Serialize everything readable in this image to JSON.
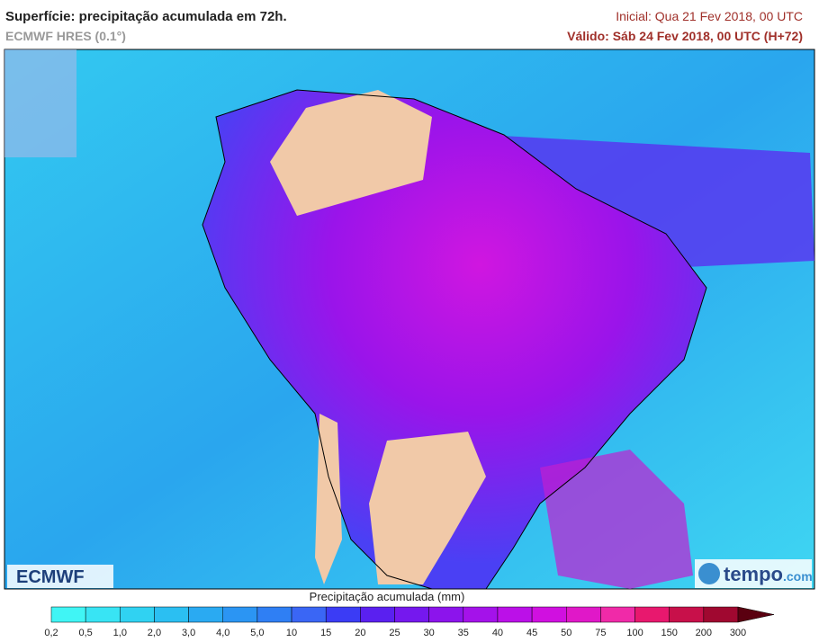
{
  "header": {
    "title": "Superfície: precipitação acumulada em 72h.",
    "subtitle": "ECMWF HRES (0.1°)",
    "init": "Inicial: Qua 21 Fev 2018, 00 UTC",
    "valid": "Válido: Sáb 24 Fev 2018, 00 UTC (H+72)"
  },
  "logos": {
    "left": "ECMWF",
    "right_brand": "tempo",
    "right_suffix": ".com"
  },
  "legend": {
    "label": "Precipitação acumulada (mm)",
    "ticks": [
      "0,2",
      "0,5",
      "1,0",
      "2,0",
      "3,0",
      "4,0",
      "5,0",
      "10",
      "15",
      "20",
      "25",
      "30",
      "35",
      "40",
      "45",
      "50",
      "75",
      "100",
      "150",
      "200",
      "300"
    ],
    "colors": [
      "#40f5f5",
      "#38e4f4",
      "#30d2f2",
      "#2bbff2",
      "#2aaaf2",
      "#2b95f3",
      "#2f7ff4",
      "#3a66f5",
      "#3b3cf5",
      "#5a20f0",
      "#7518ee",
      "#8c14ec",
      "#a412ea",
      "#bb10e8",
      "#d010e0",
      "#e018c8",
      "#f02aa8",
      "#e8186e",
      "#c8104a",
      "#a00830"
    ],
    "arrow_color": "#5a0010"
  }
}
